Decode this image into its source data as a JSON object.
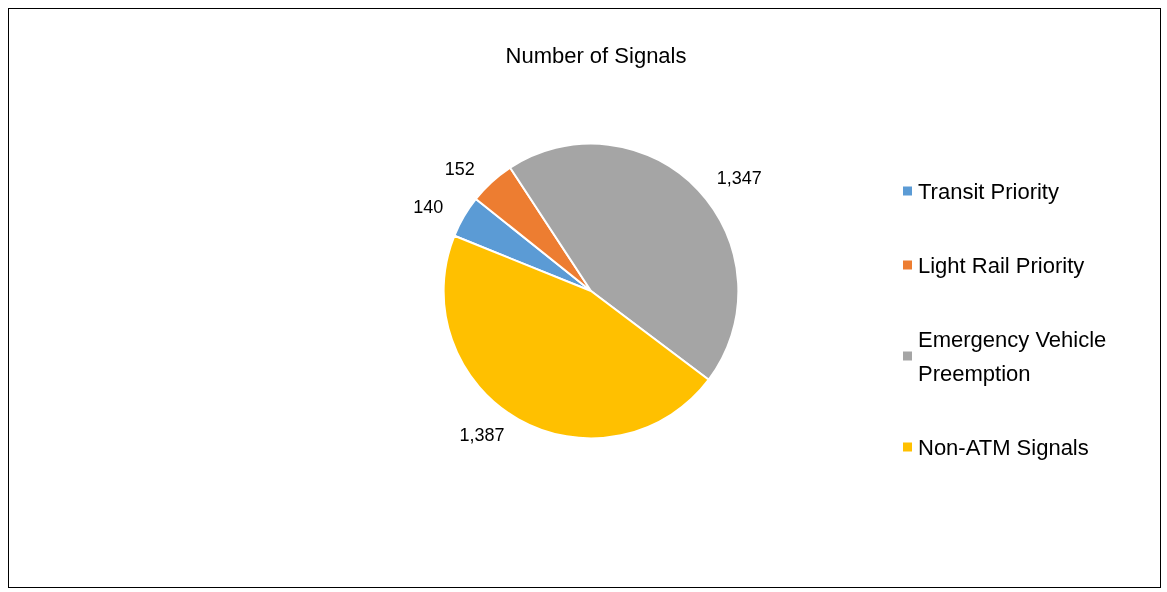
{
  "chart_data": {
    "type": "pie",
    "title": "Number of Signals",
    "categories": [
      "Transit Priority",
      "Light Rail Priority",
      "Emergency Vehicle Preemption",
      "Non-ATM Signals"
    ],
    "values": [
      140,
      152,
      1347,
      1387
    ],
    "value_labels": [
      "140",
      "152",
      "1,347",
      "1,387"
    ],
    "colors": [
      "#5b9bd5",
      "#ed7d31",
      "#a5a5a5",
      "#ffc000"
    ],
    "legend": "right"
  }
}
